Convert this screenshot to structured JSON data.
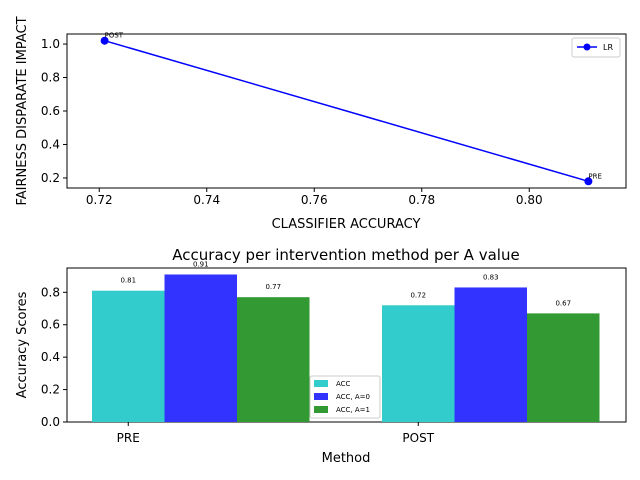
{
  "chart_data": [
    {
      "type": "line",
      "title": "",
      "xlabel": "CLASSIFIER ACCURACY",
      "ylabel": "FAIRNESS DISPARATE IMPACT",
      "xlim": [
        0.714,
        0.818
      ],
      "ylim": [
        0.14,
        1.06
      ],
      "xticks": [
        0.72,
        0.74,
        0.76,
        0.78,
        0.8
      ],
      "yticks": [
        0.2,
        0.4,
        0.6,
        0.8,
        1.0
      ],
      "xtick_labels": [
        "0.72",
        "0.74",
        "0.76",
        "0.78",
        "0.80"
      ],
      "ytick_labels": [
        "0.2",
        "0.4",
        "0.6",
        "0.8",
        "1.0"
      ],
      "grid": false,
      "legend_position": "top-right",
      "series": [
        {
          "name": "LR",
          "color": "#0000ff",
          "marker": "circle",
          "points": [
            {
              "x": 0.721,
              "y": 1.02,
              "label": "POST"
            },
            {
              "x": 0.811,
              "y": 0.18,
              "label": "PRE"
            }
          ]
        }
      ]
    },
    {
      "type": "bar",
      "title": "Accuracy per intervention method per A value",
      "xlabel": "Method",
      "ylabel": "Accuracy Scores",
      "categories": [
        "PRE",
        "POST"
      ],
      "ylim": [
        0,
        0.95
      ],
      "yticks": [
        0.0,
        0.2,
        0.4,
        0.6,
        0.8
      ],
      "ytick_labels": [
        "0.0",
        "0.2",
        "0.4",
        "0.6",
        "0.8"
      ],
      "grid": false,
      "legend_position": "lower-center",
      "series": [
        {
          "name": "ACC",
          "color": "#33cccc",
          "values": [
            0.81,
            0.72
          ],
          "labels": [
            "0.81",
            "0.72"
          ]
        },
        {
          "name": "ACC, A=0",
          "color": "#3333ff",
          "values": [
            0.91,
            0.83
          ],
          "labels": [
            "0.91",
            "0.83"
          ]
        },
        {
          "name": "ACC, A=1",
          "color": "#339933",
          "values": [
            0.77,
            0.67
          ],
          "labels": [
            "0.77",
            "0.67"
          ]
        }
      ]
    }
  ]
}
